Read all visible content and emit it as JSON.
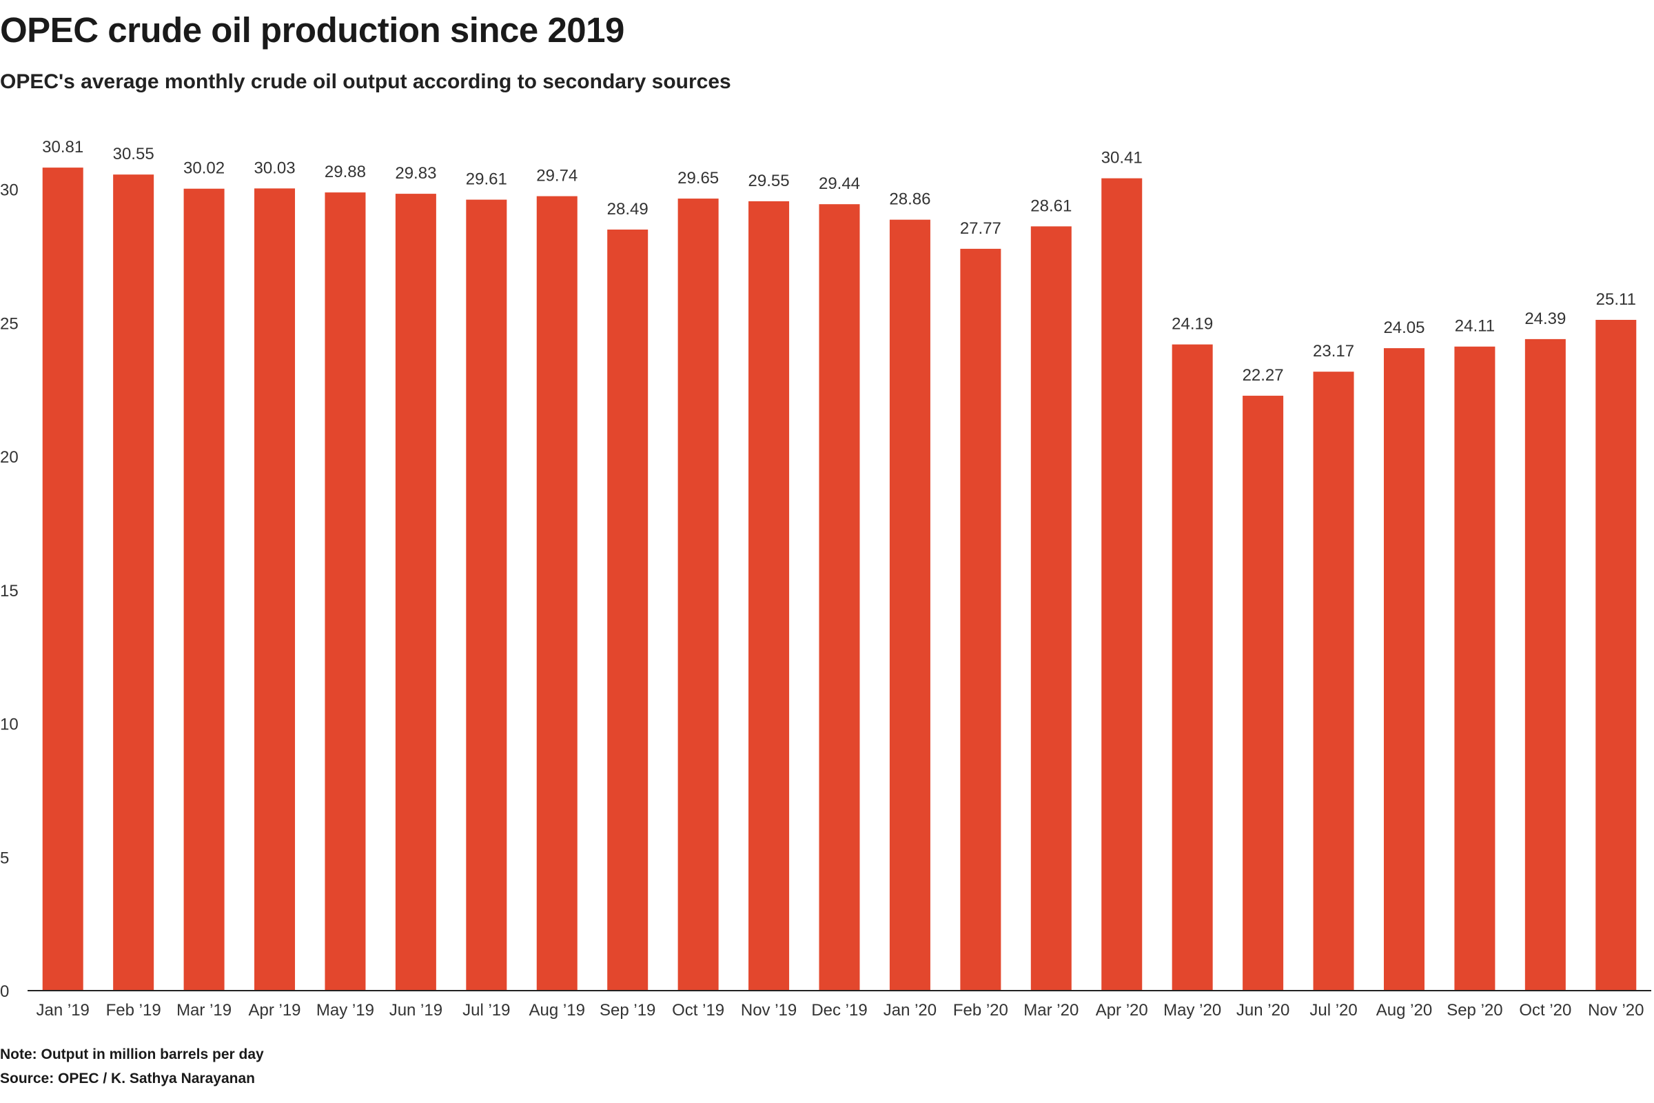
{
  "title": "OPEC crude oil production since 2019",
  "subtitle": "OPEC's average monthly crude oil output according to secondary sources",
  "note": "Note: Output in million barrels per day",
  "source": "Source: OPEC / K. Sathya Narayanan",
  "colors": {
    "bar": "#e3472d",
    "axis": "#222222",
    "text": "#333333"
  },
  "chart_data": {
    "type": "bar",
    "title": "OPEC crude oil production since 2019",
    "subtitle": "OPEC's average monthly crude oil output according to secondary sources",
    "xlabel": "",
    "ylabel": "",
    "ylim": [
      0,
      30
    ],
    "yticks": [
      0,
      5,
      10,
      15,
      20,
      25,
      30
    ],
    "grid": false,
    "categories": [
      "Jan ’19",
      "Feb ’19",
      "Mar ’19",
      "Apr ’19",
      "May ’19",
      "Jun ’19",
      "Jul ’19",
      "Aug ’19",
      "Sep ’19",
      "Oct ’19",
      "Nov ’19",
      "Dec ’19",
      "Jan ’20",
      "Feb ’20",
      "Mar ’20",
      "Apr ’20",
      "May ’20",
      "Jun ’20",
      "Jul ’20",
      "Aug ’20",
      "Sep ’20",
      "Oct ’20",
      "Nov ’20"
    ],
    "values": [
      30.81,
      30.55,
      30.02,
      30.03,
      29.88,
      29.83,
      29.61,
      29.74,
      28.49,
      29.65,
      29.55,
      29.44,
      28.86,
      27.77,
      28.61,
      30.41,
      24.19,
      22.27,
      23.17,
      24.05,
      24.11,
      24.39,
      25.11
    ],
    "value_labels": [
      "30.81",
      "30.55",
      "30.02",
      "30.03",
      "29.88",
      "29.83",
      "29.61",
      "29.74",
      "28.49",
      "29.65",
      "29.55",
      "29.44",
      "28.86",
      "27.77",
      "28.61",
      "30.41",
      "24.19",
      "22.27",
      "23.17",
      "24.05",
      "24.11",
      "24.39",
      "25.11"
    ]
  }
}
